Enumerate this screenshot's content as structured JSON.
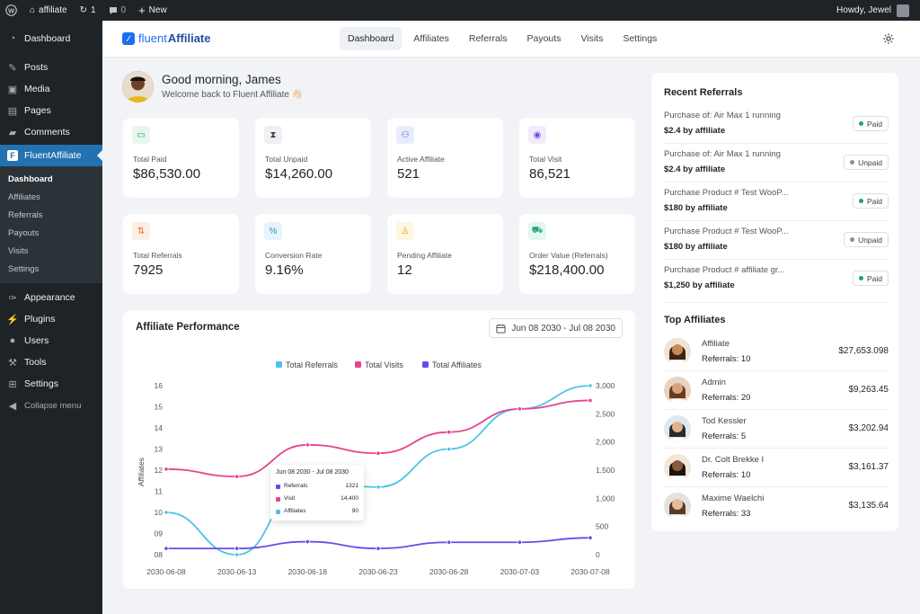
{
  "adminbar": {
    "site_name": "affiliate",
    "updates_count": "1",
    "comments_count": "0",
    "new_label": "New",
    "greeting": "Howdy, Jewel"
  },
  "sidebar": {
    "items_top": [
      {
        "label": "Dashboard",
        "icon": "dashboard-icon"
      },
      {
        "label": "Posts",
        "icon": "pin-icon"
      },
      {
        "label": "Media",
        "icon": "media-icon"
      },
      {
        "label": "Pages",
        "icon": "pages-icon"
      },
      {
        "label": "Comments",
        "icon": "comment-icon"
      }
    ],
    "active_label": "FluentAffiliate",
    "submenu": [
      "Dashboard",
      "Affiliates",
      "Referrals",
      "Payouts",
      "Visits",
      "Settings"
    ],
    "items_bottom": [
      {
        "label": "Appearance",
        "icon": "brush-icon"
      },
      {
        "label": "Plugins",
        "icon": "plug-icon"
      },
      {
        "label": "Users",
        "icon": "user-icon"
      },
      {
        "label": "Tools",
        "icon": "wrench-icon"
      },
      {
        "label": "Settings",
        "icon": "settings-icon"
      }
    ],
    "collapse_label": "Collapse menu"
  },
  "nav": {
    "logo_fluent": "fluent",
    "logo_affiliate": "Affiliate",
    "tabs": [
      "Dashboard",
      "Affiliates",
      "Referrals",
      "Payouts",
      "Visits",
      "Settings"
    ]
  },
  "greeting": {
    "title": "Good morning, James",
    "subtitle": "Welcome back to Fluent Affiliate 👋🏻"
  },
  "stats": [
    {
      "label": "Total Paid",
      "value": "$86,530.00",
      "icon": "wallet-icon",
      "color": "#22a55b",
      "bg": "#e8f7ee"
    },
    {
      "label": "Total Unpaid",
      "value": "$14,260.00",
      "icon": "hourglass-icon",
      "color": "#3c434a",
      "bg": "#eef0f3"
    },
    {
      "label": "Active Affiliate",
      "value": "521",
      "icon": "users-icon",
      "color": "#3b5bdb",
      "bg": "#e9edfb"
    },
    {
      "label": "Total Visit",
      "value": "86,521",
      "icon": "eye-icon",
      "color": "#7048e8",
      "bg": "#f0ebfd"
    },
    {
      "label": "Total Referrals",
      "value": "7925",
      "icon": "exchange-icon",
      "color": "#f0702e",
      "bg": "#fdeee6"
    },
    {
      "label": "Conversion Rate",
      "value": "9.16%",
      "icon": "percent-icon",
      "color": "#2d96c8",
      "bg": "#e6f4fb"
    },
    {
      "label": "Pending Affiliate",
      "value": "12",
      "icon": "user-clock-icon",
      "color": "#e0a800",
      "bg": "#fdf6e1"
    },
    {
      "label": "Order Value (Referrals)",
      "value": "$218,400.00",
      "icon": "cart-icon",
      "color": "#1aa97a",
      "bg": "#e4f7f0"
    }
  ],
  "performance": {
    "title": "Affiliate Performance",
    "date_range": "Jun 08 2030 - Jul 08 2030",
    "tooltip": {
      "title": "Jun 08 2030 - Jul 08 2030",
      "rows": [
        {
          "label": "Referrals",
          "value": "1321",
          "color": "#7048e8"
        },
        {
          "label": "Visit",
          "value": "14,400",
          "color": "#e64590"
        },
        {
          "label": "Affiliates",
          "value": "90",
          "color": "#4cc3ea"
        }
      ]
    }
  },
  "chart_data": {
    "type": "line",
    "ylabel": "Affiliates",
    "x": [
      "2030-06-08",
      "2030-06-13",
      "2030-06-18",
      "2030-06-23",
      "2030-06-28",
      "2030-07-03",
      "2030-07-08"
    ],
    "x_ticks": [
      "2030-06-08",
      "2030-06-13",
      "2030-06-18",
      "2030-06-23",
      "2030-06-28",
      "2030-07-03",
      "2030-07-08"
    ],
    "left_axis": {
      "min": 8,
      "max": 16,
      "ticks": [
        "08",
        "09",
        "10",
        "11",
        "12",
        "13",
        "14",
        "15",
        "16"
      ]
    },
    "right_axis": {
      "min": 0,
      "max": 3000,
      "ticks": [
        "0",
        "500",
        "1,000",
        "1,500",
        "2,000",
        "2,500",
        "3,000"
      ]
    },
    "legend": "top-center",
    "series": [
      {
        "name": "Total Referrals",
        "color": "#4cc3ea",
        "axis": "left",
        "values": [
          10,
          8,
          11.6,
          11.2,
          13,
          14.9,
          16
        ]
      },
      {
        "name": "Total Visits",
        "color": "#e64590",
        "axis": "left",
        "values": [
          12.05,
          11.7,
          13.2,
          12.8,
          13.8,
          14.9,
          15.3
        ]
      },
      {
        "name": "Total Affiliates",
        "color": "#7048e8",
        "axis": "right",
        "values": [
          110,
          110,
          230,
          110,
          220,
          220,
          300
        ]
      }
    ]
  },
  "recent_referrals": {
    "title": "Recent Referrals",
    "rows": [
      {
        "name": "Purchase of: Air Max 1 running",
        "amount": "$2.4 by affiliate",
        "status": "Paid",
        "status_color": "#22a55b"
      },
      {
        "name": "Purchase of: Air Max 1 running",
        "amount": "$2.4 by affiliate",
        "status": "Unpaid",
        "status_color": "#8a9096"
      },
      {
        "name": "Purchase Product # Test WooP...",
        "amount": "$180 by affiliate",
        "status": "Paid",
        "status_color": "#22a55b"
      },
      {
        "name": "Purchase Product # Test WooP...",
        "amount": "$180 by affiliate",
        "status": "Unpaid",
        "status_color": "#8a9096"
      },
      {
        "name": "Purchase Product # affiliate gr...",
        "amount": "$1,250 by affiliate",
        "status": "Paid",
        "status_color": "#22a55b"
      }
    ]
  },
  "top_affiliates": {
    "title": "Top Affiliates",
    "rows": [
      {
        "name": "Affiliate",
        "refs": "Referrals: 10",
        "amount": "$27,653.098",
        "skin": "#c98a5a",
        "hair": "#3a2416",
        "bg": "#f1e3d3"
      },
      {
        "name": "Admin",
        "refs": "Referrals: 20",
        "amount": "$9,263.45",
        "skin": "#d9a27c",
        "hair": "#6b3a22",
        "bg": "#e9d2bf"
      },
      {
        "name": "Tod Kessler",
        "refs": "Referrals: 5",
        "amount": "$3,202.94",
        "skin": "#e2b08d",
        "hair": "#2a2a2a",
        "bg": "#dfe7ef"
      },
      {
        "name": "Dr. Colt Brekke I",
        "refs": "Referrals: 10",
        "amount": "$3,161.37",
        "skin": "#8a5a3c",
        "hair": "#1e140e",
        "bg": "#f3e7da"
      },
      {
        "name": "Maxime Waelchi",
        "refs": "Referrals: 33",
        "amount": "$3,135.64",
        "skin": "#e7bb98",
        "hair": "#5a3a26",
        "bg": "#e6e1dc"
      }
    ]
  }
}
